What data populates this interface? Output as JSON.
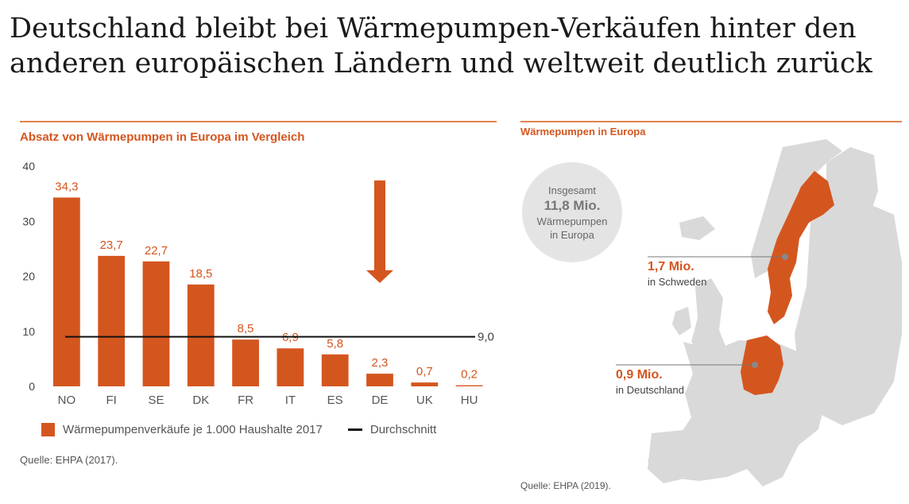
{
  "headline": "Deutschland bleibt bei Wärmepumpen-Verkäufen hinter den anderen europäischen Ländern und weltweit deutlich zurück",
  "left_panel": {
    "title": "Absatz von Wärmepumpen in Europa im Vergleich",
    "legend_bars": "Wärmepumpenverkäufe je 1.000 Haushalte 2017",
    "legend_line": "Durchschnitt",
    "source": "Quelle: EHPA (2017)."
  },
  "right_panel": {
    "title": "Wärmepumpen in Europa",
    "bubble": {
      "line1": "Insgesamt",
      "big": "11,8 Mio.",
      "line2": "Wärmepumpen",
      "line3": "in Europa"
    },
    "sweden": {
      "value": "1,7 Mio.",
      "label": "in Schweden"
    },
    "germany": {
      "value": "0,9 Mio.",
      "label": "in Deutschland"
    },
    "source": "Quelle: EHPA (2019)."
  },
  "colors": {
    "accent": "#d4561f",
    "rule": "#e0834a",
    "average_line": "#111111",
    "map_land": "#d9d9d9",
    "bubble": "#e4e4e4"
  },
  "chart_data": {
    "type": "bar",
    "categories": [
      "NO",
      "FI",
      "SE",
      "DK",
      "FR",
      "IT",
      "ES",
      "DE",
      "UK",
      "HU"
    ],
    "values": [
      34.3,
      23.7,
      22.7,
      18.5,
      8.5,
      6.9,
      5.8,
      2.3,
      0.7,
      0.2
    ],
    "value_labels": [
      "34,3",
      "23,7",
      "22,7",
      "18,5",
      "8,5",
      "6,9",
      "5,8",
      "2,3",
      "0,7",
      "0,2"
    ],
    "series": [
      {
        "name": "Wärmepumpenverkäufe je 1.000 Haushalte 2017",
        "values": [
          34.3,
          23.7,
          22.7,
          18.5,
          8.5,
          6.9,
          5.8,
          2.3,
          0.7,
          0.2
        ]
      }
    ],
    "average": {
      "name": "Durchschnitt",
      "value": 9.0,
      "label": "9,0"
    },
    "highlight": {
      "category": "DE",
      "marker": "arrow-down"
    },
    "yticks": [
      "0",
      "10",
      "20",
      "30",
      "40"
    ],
    "ylim": [
      0,
      40
    ],
    "grid": false,
    "legend_position": "bottom",
    "title": "Absatz von Wärmepumpen in Europa im Vergleich",
    "xlabel": "",
    "ylabel": ""
  }
}
